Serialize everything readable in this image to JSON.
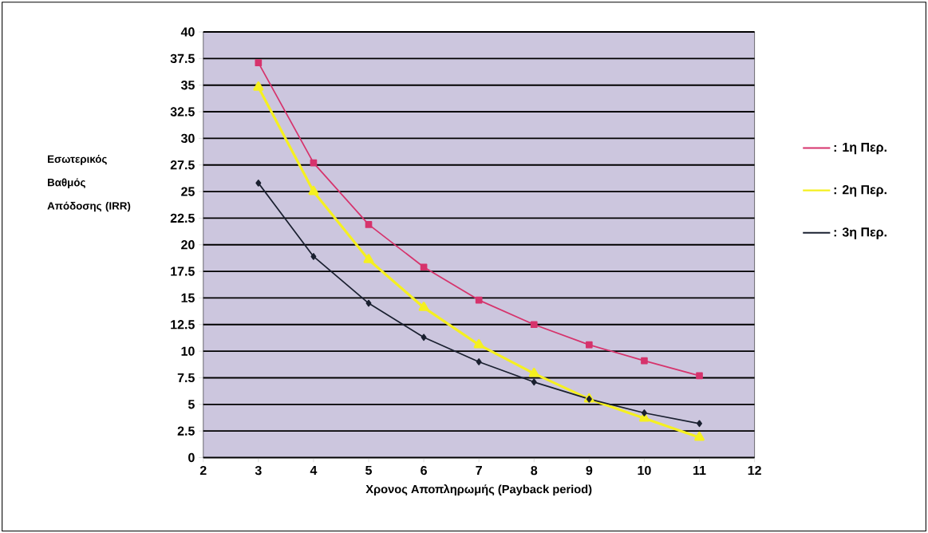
{
  "chart_data": {
    "type": "line",
    "xlabel": "Χρονος Αποπληρωμής  (Payback period)",
    "ylabel": "Εσωτερικός Βαθμός Απόδοσης (IRR)",
    "x": [
      3,
      4,
      5,
      6,
      7,
      8,
      9,
      10,
      11
    ],
    "series": [
      {
        "name": ": 1η Περ.",
        "color": "#d6336c",
        "marker": "square",
        "values": [
          37.1,
          27.7,
          21.9,
          17.9,
          14.8,
          12.5,
          10.6,
          9.1,
          7.7
        ]
      },
      {
        "name": ": 2η Περ.",
        "color": "#f5f020",
        "marker": "triangle",
        "values": [
          34.8,
          25.0,
          18.6,
          14.1,
          10.6,
          7.9,
          5.5,
          3.7,
          1.9
        ]
      },
      {
        "name": ": 3η Περ.",
        "color": "#1a2030",
        "marker": "diamond",
        "values": [
          25.8,
          18.9,
          14.5,
          11.3,
          9.0,
          7.1,
          5.5,
          4.2,
          3.2
        ]
      }
    ],
    "xlim": [
      2,
      12
    ],
    "xticks": [
      2,
      3,
      4,
      5,
      6,
      7,
      8,
      9,
      10,
      11,
      12
    ],
    "ylim": [
      0,
      40
    ],
    "yticks": [
      0,
      2.5,
      5,
      7.5,
      10,
      12.5,
      15,
      17.5,
      20,
      22.5,
      25,
      27.5,
      30,
      32.5,
      35,
      37.5,
      40
    ],
    "grid": "y",
    "legend": "right",
    "line_style": "solid"
  }
}
